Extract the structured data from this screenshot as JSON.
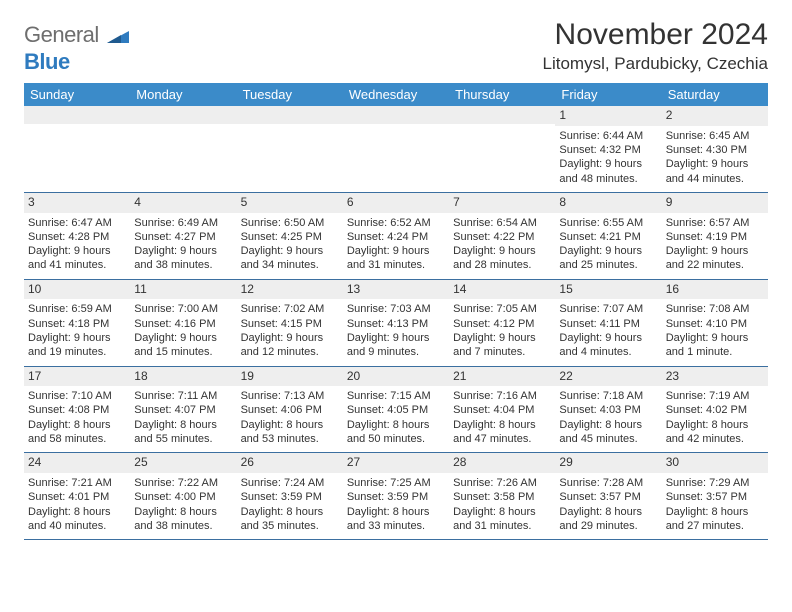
{
  "logo": {
    "text1": "General",
    "text2": "Blue"
  },
  "title": "November 2024",
  "location": "Litomysl, Pardubicky, Czechia",
  "colors": {
    "header_bg": "#3b8bc9",
    "header_text": "#ffffff",
    "daynum_bg": "#eeeeee",
    "text": "#333333",
    "logo_gray": "#6e6e6e",
    "logo_blue": "#2f7bbf",
    "week_border": "#3b6fa0"
  },
  "dow": [
    "Sunday",
    "Monday",
    "Tuesday",
    "Wednesday",
    "Thursday",
    "Friday",
    "Saturday"
  ],
  "weeks": [
    [
      null,
      null,
      null,
      null,
      null,
      {
        "n": "1",
        "sr": "Sunrise: 6:44 AM",
        "ss": "Sunset: 4:32 PM",
        "d1": "Daylight: 9 hours",
        "d2": "and 48 minutes."
      },
      {
        "n": "2",
        "sr": "Sunrise: 6:45 AM",
        "ss": "Sunset: 4:30 PM",
        "d1": "Daylight: 9 hours",
        "d2": "and 44 minutes."
      }
    ],
    [
      {
        "n": "3",
        "sr": "Sunrise: 6:47 AM",
        "ss": "Sunset: 4:28 PM",
        "d1": "Daylight: 9 hours",
        "d2": "and 41 minutes."
      },
      {
        "n": "4",
        "sr": "Sunrise: 6:49 AM",
        "ss": "Sunset: 4:27 PM",
        "d1": "Daylight: 9 hours",
        "d2": "and 38 minutes."
      },
      {
        "n": "5",
        "sr": "Sunrise: 6:50 AM",
        "ss": "Sunset: 4:25 PM",
        "d1": "Daylight: 9 hours",
        "d2": "and 34 minutes."
      },
      {
        "n": "6",
        "sr": "Sunrise: 6:52 AM",
        "ss": "Sunset: 4:24 PM",
        "d1": "Daylight: 9 hours",
        "d2": "and 31 minutes."
      },
      {
        "n": "7",
        "sr": "Sunrise: 6:54 AM",
        "ss": "Sunset: 4:22 PM",
        "d1": "Daylight: 9 hours",
        "d2": "and 28 minutes."
      },
      {
        "n": "8",
        "sr": "Sunrise: 6:55 AM",
        "ss": "Sunset: 4:21 PM",
        "d1": "Daylight: 9 hours",
        "d2": "and 25 minutes."
      },
      {
        "n": "9",
        "sr": "Sunrise: 6:57 AM",
        "ss": "Sunset: 4:19 PM",
        "d1": "Daylight: 9 hours",
        "d2": "and 22 minutes."
      }
    ],
    [
      {
        "n": "10",
        "sr": "Sunrise: 6:59 AM",
        "ss": "Sunset: 4:18 PM",
        "d1": "Daylight: 9 hours",
        "d2": "and 19 minutes."
      },
      {
        "n": "11",
        "sr": "Sunrise: 7:00 AM",
        "ss": "Sunset: 4:16 PM",
        "d1": "Daylight: 9 hours",
        "d2": "and 15 minutes."
      },
      {
        "n": "12",
        "sr": "Sunrise: 7:02 AM",
        "ss": "Sunset: 4:15 PM",
        "d1": "Daylight: 9 hours",
        "d2": "and 12 minutes."
      },
      {
        "n": "13",
        "sr": "Sunrise: 7:03 AM",
        "ss": "Sunset: 4:13 PM",
        "d1": "Daylight: 9 hours",
        "d2": "and 9 minutes."
      },
      {
        "n": "14",
        "sr": "Sunrise: 7:05 AM",
        "ss": "Sunset: 4:12 PM",
        "d1": "Daylight: 9 hours",
        "d2": "and 7 minutes."
      },
      {
        "n": "15",
        "sr": "Sunrise: 7:07 AM",
        "ss": "Sunset: 4:11 PM",
        "d1": "Daylight: 9 hours",
        "d2": "and 4 minutes."
      },
      {
        "n": "16",
        "sr": "Sunrise: 7:08 AM",
        "ss": "Sunset: 4:10 PM",
        "d1": "Daylight: 9 hours",
        "d2": "and 1 minute."
      }
    ],
    [
      {
        "n": "17",
        "sr": "Sunrise: 7:10 AM",
        "ss": "Sunset: 4:08 PM",
        "d1": "Daylight: 8 hours",
        "d2": "and 58 minutes."
      },
      {
        "n": "18",
        "sr": "Sunrise: 7:11 AM",
        "ss": "Sunset: 4:07 PM",
        "d1": "Daylight: 8 hours",
        "d2": "and 55 minutes."
      },
      {
        "n": "19",
        "sr": "Sunrise: 7:13 AM",
        "ss": "Sunset: 4:06 PM",
        "d1": "Daylight: 8 hours",
        "d2": "and 53 minutes."
      },
      {
        "n": "20",
        "sr": "Sunrise: 7:15 AM",
        "ss": "Sunset: 4:05 PM",
        "d1": "Daylight: 8 hours",
        "d2": "and 50 minutes."
      },
      {
        "n": "21",
        "sr": "Sunrise: 7:16 AM",
        "ss": "Sunset: 4:04 PM",
        "d1": "Daylight: 8 hours",
        "d2": "and 47 minutes."
      },
      {
        "n": "22",
        "sr": "Sunrise: 7:18 AM",
        "ss": "Sunset: 4:03 PM",
        "d1": "Daylight: 8 hours",
        "d2": "and 45 minutes."
      },
      {
        "n": "23",
        "sr": "Sunrise: 7:19 AM",
        "ss": "Sunset: 4:02 PM",
        "d1": "Daylight: 8 hours",
        "d2": "and 42 minutes."
      }
    ],
    [
      {
        "n": "24",
        "sr": "Sunrise: 7:21 AM",
        "ss": "Sunset: 4:01 PM",
        "d1": "Daylight: 8 hours",
        "d2": "and 40 minutes."
      },
      {
        "n": "25",
        "sr": "Sunrise: 7:22 AM",
        "ss": "Sunset: 4:00 PM",
        "d1": "Daylight: 8 hours",
        "d2": "and 38 minutes."
      },
      {
        "n": "26",
        "sr": "Sunrise: 7:24 AM",
        "ss": "Sunset: 3:59 PM",
        "d1": "Daylight: 8 hours",
        "d2": "and 35 minutes."
      },
      {
        "n": "27",
        "sr": "Sunrise: 7:25 AM",
        "ss": "Sunset: 3:59 PM",
        "d1": "Daylight: 8 hours",
        "d2": "and 33 minutes."
      },
      {
        "n": "28",
        "sr": "Sunrise: 7:26 AM",
        "ss": "Sunset: 3:58 PM",
        "d1": "Daylight: 8 hours",
        "d2": "and 31 minutes."
      },
      {
        "n": "29",
        "sr": "Sunrise: 7:28 AM",
        "ss": "Sunset: 3:57 PM",
        "d1": "Daylight: 8 hours",
        "d2": "and 29 minutes."
      },
      {
        "n": "30",
        "sr": "Sunrise: 7:29 AM",
        "ss": "Sunset: 3:57 PM",
        "d1": "Daylight: 8 hours",
        "d2": "and 27 minutes."
      }
    ]
  ]
}
